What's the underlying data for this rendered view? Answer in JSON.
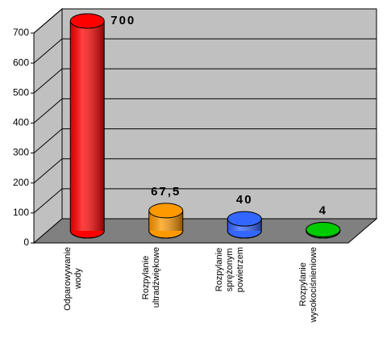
{
  "chart_data": {
    "type": "bar3d",
    "categories": [
      "Odparowywanie\nwody",
      "Rozpylanie\nultradźwiękowe",
      "Rozpylanie\nsprężonym\npowietrzem",
      "Rozpylanie\nwysokociśnieniowe"
    ],
    "values": [
      700,
      67.5,
      40,
      4
    ],
    "value_labels": [
      "700",
      "67,5",
      "40",
      "4"
    ],
    "colors": [
      "#ff0000",
      "#ff9900",
      "#3366ff",
      "#00cc00"
    ],
    "ylim": [
      0,
      700
    ],
    "yticks": [
      0,
      100,
      200,
      300,
      400,
      500,
      600,
      700
    ],
    "grid": true
  }
}
